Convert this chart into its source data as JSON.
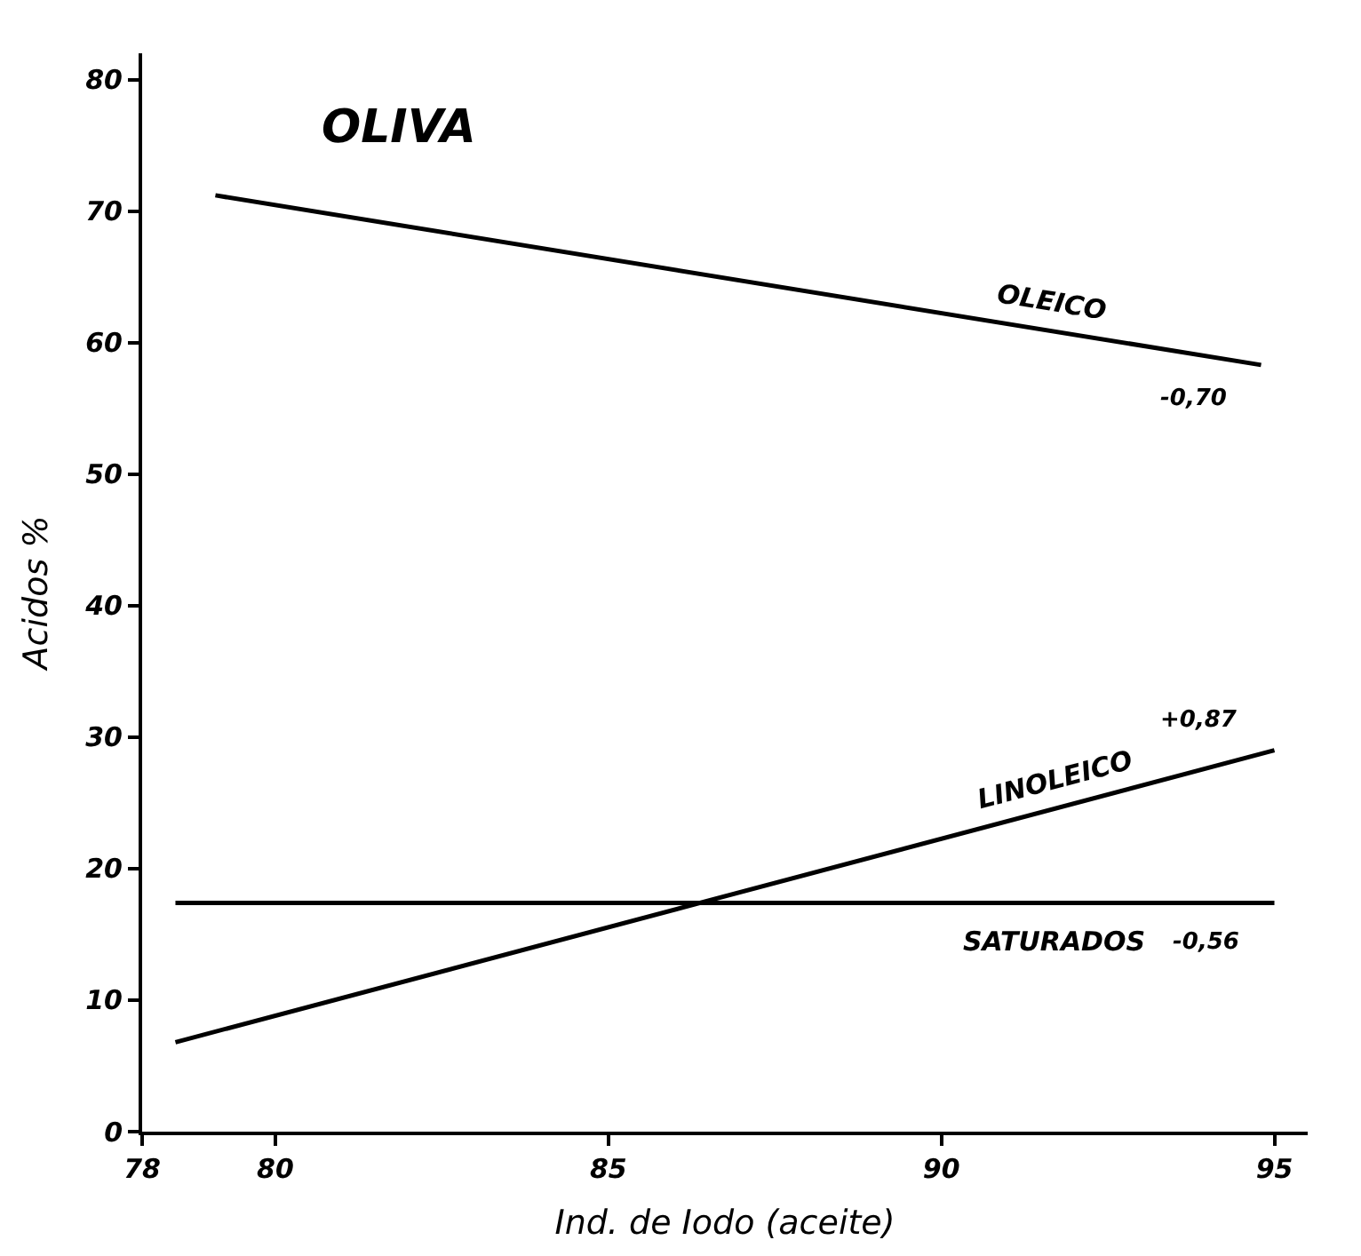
{
  "chart_data": {
    "type": "line",
    "title": "OLIVA",
    "xlabel": "Ind. de Iodo (aceite)",
    "ylabel": "Acidos %",
    "series": [
      {
        "name": "OLEICO",
        "color": "#000000",
        "x": [
          79.1,
          94.8
        ],
        "values": [
          71.2,
          58.3
        ]
      },
      {
        "name": "LINOLEICO",
        "color": "#000000",
        "x": [
          78.5,
          95
        ],
        "values": [
          6.8,
          29
        ]
      },
      {
        "name": "SATURADOS",
        "color": "#000000",
        "x": [
          78.5,
          95
        ],
        "values": [
          17.4,
          17.4
        ]
      }
    ],
    "annotations": [
      "-0,70",
      "+0,87",
      "-0,56"
    ],
    "xlim": [
      78,
      95.5
    ],
    "xticks": [
      78,
      80,
      85,
      90,
      95
    ],
    "ylim": [
      0,
      82
    ],
    "yticks": [
      0,
      10,
      20,
      30,
      40,
      50,
      60,
      70,
      80
    ],
    "legend": false,
    "marker": "none",
    "line_style": "solid"
  }
}
